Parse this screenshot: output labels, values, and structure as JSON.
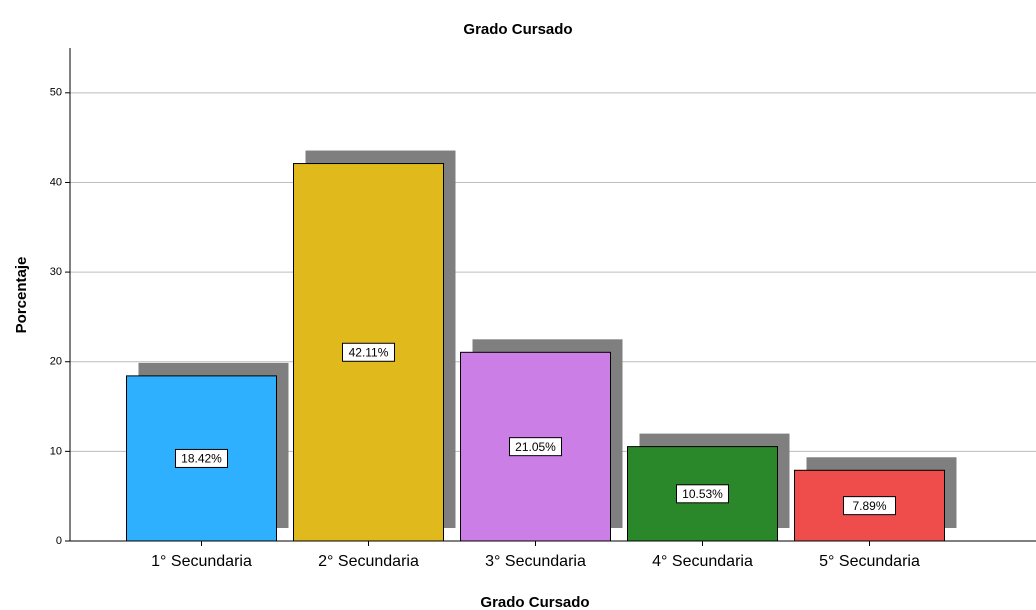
{
  "chart_data": {
    "type": "bar",
    "title": "Grado Cursado",
    "x_label": "Grado Cursado",
    "y_label": "Porcentaje",
    "categories": [
      "1° Secundaria",
      "2° Secundaria",
      "3° Secundaria",
      "4° Secundaria",
      "5° Secundaria"
    ],
    "values": [
      18.42,
      42.11,
      21.05,
      10.53,
      7.89
    ],
    "value_labels": [
      "18.42%",
      "42.11%",
      "21.05%",
      "10.53%",
      "7.89%"
    ],
    "colors": [
      "#2eb0ff",
      "#e0ba1c",
      "#cb7fe6",
      "#2a872a",
      "#ef4c4c"
    ],
    "ylim": [
      0,
      55
    ],
    "yticks": [
      0,
      10,
      20,
      30,
      40,
      50
    ],
    "grid": true
  }
}
